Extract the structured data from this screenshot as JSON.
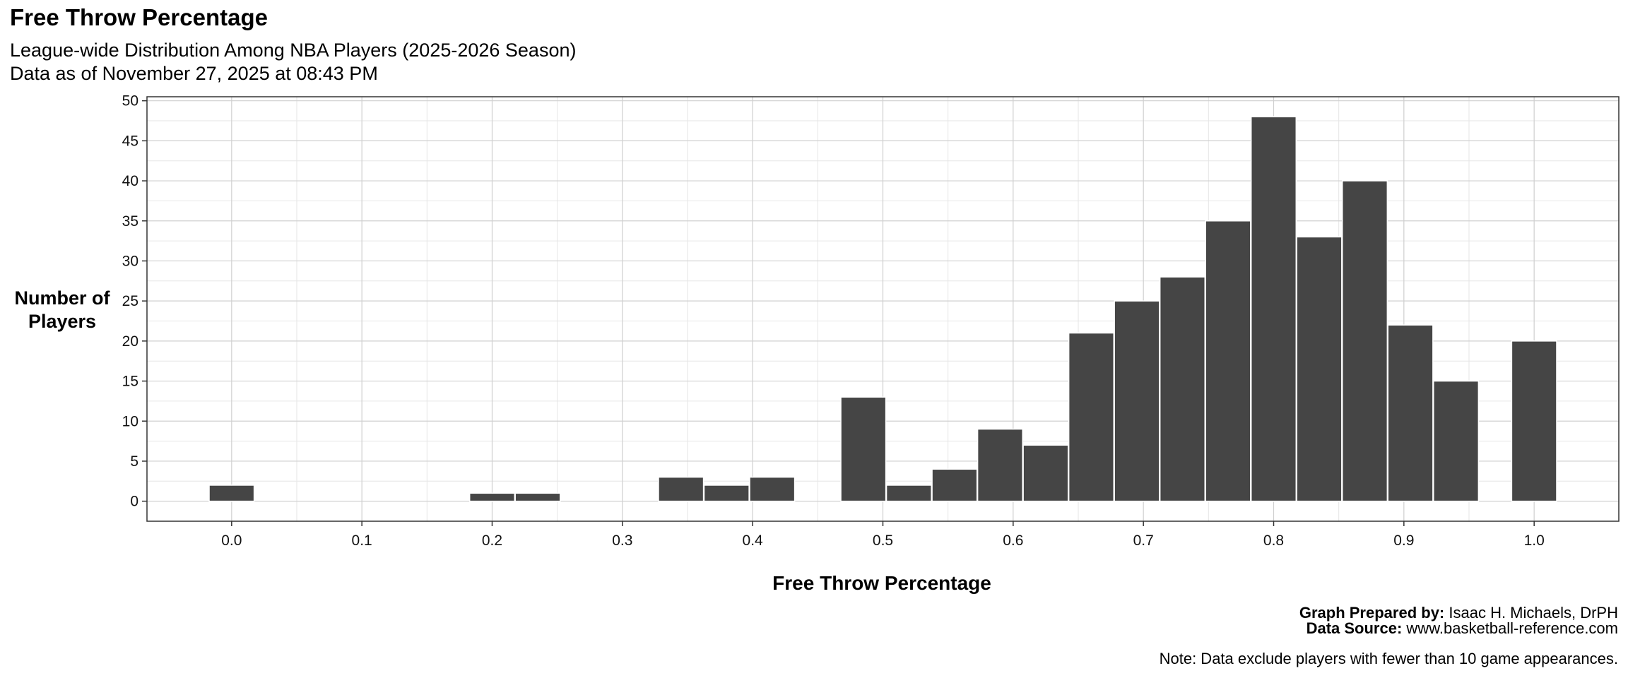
{
  "title": "Free Throw Percentage",
  "subtitle_line1": "League-wide Distribution Among NBA Players (2025-2026 Season)",
  "subtitle_line2": "Data as of November 27, 2025 at 08:43 PM",
  "caption": {
    "prepared_label": "Graph Prepared by:",
    "prepared_value": "Isaac H. Michaels, DrPH",
    "source_label": "Data Source:",
    "source_value": "www.basketball-reference.com",
    "note": "Note: Data exclude players with fewer than 10 game appearances."
  },
  "chart_data": {
    "type": "bar",
    "title": "Free Throw Percentage",
    "xlabel": "Free Throw Percentage",
    "ylabel": "Number of Players",
    "xlim": [
      -0.065,
      1.065
    ],
    "ylim": [
      -2.5,
      50.5
    ],
    "bin_width": 0.0345,
    "x_ticks": [
      "0.0",
      "0.1",
      "0.2",
      "0.3",
      "0.4",
      "0.5",
      "0.6",
      "0.7",
      "0.8",
      "0.9",
      "1.0"
    ],
    "y_ticks": [
      "0",
      "5",
      "10",
      "15",
      "20",
      "25",
      "30",
      "35",
      "40",
      "45",
      "50"
    ],
    "bar_color": "#454545",
    "grid": true,
    "bins": [
      {
        "x": 0.0,
        "count": 2
      },
      {
        "x": 0.2,
        "count": 1
      },
      {
        "x": 0.235,
        "count": 1
      },
      {
        "x": 0.345,
        "count": 3
      },
      {
        "x": 0.38,
        "count": 2
      },
      {
        "x": 0.415,
        "count": 3
      },
      {
        "x": 0.485,
        "count": 13
      },
      {
        "x": 0.52,
        "count": 2
      },
      {
        "x": 0.555,
        "count": 4
      },
      {
        "x": 0.59,
        "count": 9
      },
      {
        "x": 0.625,
        "count": 7
      },
      {
        "x": 0.66,
        "count": 21
      },
      {
        "x": 0.695,
        "count": 25
      },
      {
        "x": 0.73,
        "count": 28
      },
      {
        "x": 0.765,
        "count": 35
      },
      {
        "x": 0.8,
        "count": 48
      },
      {
        "x": 0.835,
        "count": 33
      },
      {
        "x": 0.87,
        "count": 40
      },
      {
        "x": 0.905,
        "count": 22
      },
      {
        "x": 0.94,
        "count": 15
      },
      {
        "x": 1.0,
        "count": 20
      }
    ]
  }
}
